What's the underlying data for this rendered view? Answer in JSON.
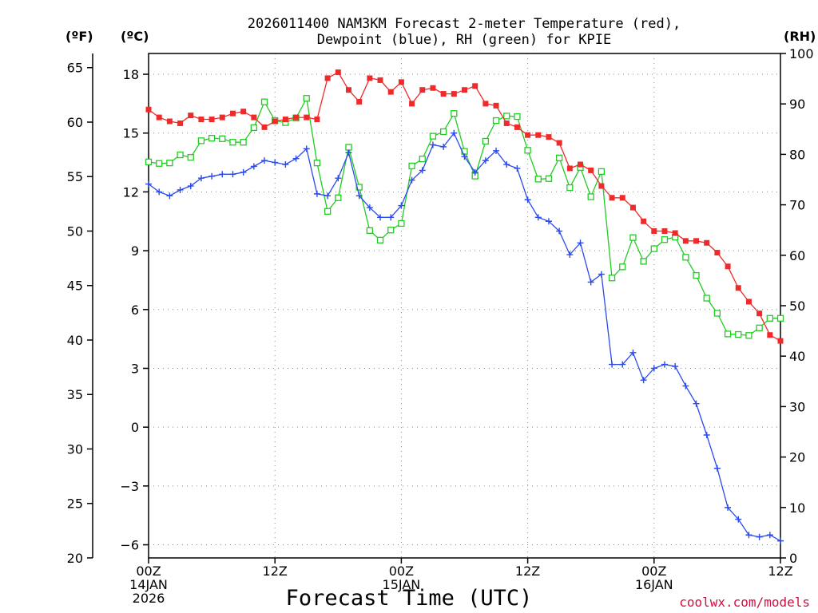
{
  "chart_data": {
    "type": "line",
    "title": [
      "2026011400 NAM3KM Forecast 2-meter Temperature (red),",
      "Dewpoint (blue), RH (green) for KPIE"
    ],
    "xlabel": "Forecast Time (UTC)",
    "x_hours": [
      0,
      1,
      2,
      3,
      4,
      5,
      6,
      7,
      8,
      9,
      10,
      11,
      12,
      13,
      14,
      15,
      16,
      17,
      18,
      19,
      20,
      21,
      22,
      23,
      24,
      25,
      26,
      27,
      28,
      29,
      30,
      31,
      32,
      33,
      34,
      35,
      36,
      37,
      38,
      39,
      40,
      41,
      42,
      43,
      44,
      45,
      46,
      47,
      48,
      49,
      50,
      51,
      52,
      53,
      54,
      55,
      56,
      57,
      58,
      59,
      60
    ],
    "x_range": [
      0,
      60
    ],
    "x_ticks": [
      {
        "hour": 0,
        "lines": [
          "00Z",
          "14JAN",
          "2026"
        ]
      },
      {
        "hour": 12,
        "lines": [
          "12Z"
        ]
      },
      {
        "hour": 24,
        "lines": [
          "00Z",
          "15JAN"
        ]
      },
      {
        "hour": 36,
        "lines": [
          "12Z"
        ]
      },
      {
        "hour": 48,
        "lines": [
          "00Z",
          "16JAN"
        ]
      },
      {
        "hour": 60,
        "lines": [
          "12Z"
        ]
      }
    ],
    "y_left_f": {
      "unit": "(ºF)",
      "range": [
        20,
        66.3
      ],
      "ticks": [
        20,
        25,
        30,
        35,
        40,
        45,
        50,
        55,
        60,
        65
      ]
    },
    "y_left_c": {
      "unit": "(ºC)",
      "range": [
        -6.67,
        19.06
      ],
      "ticks": [
        -6,
        -3,
        0,
        3,
        6,
        9,
        12,
        15,
        18
      ]
    },
    "y_right_rh": {
      "unit": "(RH)",
      "range": [
        0,
        100
      ],
      "ticks": [
        0,
        10,
        20,
        30,
        40,
        50,
        60,
        70,
        80,
        90,
        100
      ]
    },
    "series": [
      {
        "name": "Temperature (°C)",
        "color": "#ee2a2a",
        "marker": "filled-square",
        "axis": "c",
        "values": [
          16.2,
          15.8,
          15.6,
          15.5,
          15.9,
          15.7,
          15.7,
          15.8,
          16.0,
          16.1,
          15.8,
          15.3,
          15.6,
          15.7,
          15.8,
          15.8,
          15.7,
          17.8,
          18.1,
          17.2,
          16.6,
          17.8,
          17.7,
          17.1,
          17.6,
          16.5,
          17.2,
          17.3,
          17.0,
          17.0,
          17.2,
          17.4,
          16.5,
          16.4,
          15.5,
          15.3,
          14.9,
          14.9,
          14.8,
          14.5,
          13.2,
          13.4,
          13.1,
          12.3,
          11.7,
          11.7,
          11.2,
          10.5,
          10.0,
          10.0,
          9.9,
          9.5,
          9.5,
          9.4,
          8.9,
          8.2,
          7.1,
          6.4,
          5.8,
          4.7,
          4.4
        ]
      },
      {
        "name": "Dewpoint (°C)",
        "color": "#2a4aee",
        "marker": "plus",
        "axis": "c",
        "values": [
          12.4,
          12.0,
          11.8,
          12.1,
          12.3,
          12.7,
          12.8,
          12.9,
          12.9,
          13.0,
          13.3,
          13.6,
          13.5,
          13.4,
          13.7,
          14.2,
          11.9,
          11.8,
          12.7,
          14.0,
          11.8,
          11.2,
          10.7,
          10.7,
          11.3,
          12.6,
          13.1,
          14.4,
          14.3,
          15.0,
          13.8,
          13.0,
          13.6,
          14.1,
          13.4,
          13.2,
          11.6,
          10.7,
          10.5,
          10.0,
          8.8,
          9.4,
          7.4,
          7.8,
          3.2,
          3.2,
          3.8,
          2.4,
          3.0,
          3.2,
          3.1,
          2.1,
          1.2,
          -0.4,
          -2.1,
          -4.1,
          -4.7,
          -5.5,
          -5.6,
          -5.5,
          -5.8
        ]
      },
      {
        "name": "RH (%)",
        "color": "#22cc22",
        "marker": "open-square",
        "axis": "rh",
        "values": [
          78.5,
          78.2,
          78.3,
          79.9,
          79.4,
          82.7,
          83.2,
          83.1,
          82.4,
          82.4,
          85.3,
          90.4,
          86.7,
          86.3,
          87.2,
          91.1,
          78.3,
          68.7,
          71.4,
          81.4,
          73.5,
          64.9,
          63.0,
          65.0,
          66.3,
          77.7,
          79.1,
          83.6,
          84.5,
          88.1,
          80.6,
          75.7,
          82.6,
          86.7,
          87.6,
          87.5,
          80.8,
          75.1,
          75.2,
          79.3,
          73.4,
          77.4,
          71.6,
          76.6,
          55.5,
          57.7,
          63.5,
          58.8,
          61.3,
          63.1,
          63.6,
          59.6,
          56.0,
          51.5,
          48.5,
          44.4,
          44.3,
          44.1,
          45.6,
          47.5,
          47.5
        ]
      }
    ]
  },
  "credit": "coolwx.com/models"
}
